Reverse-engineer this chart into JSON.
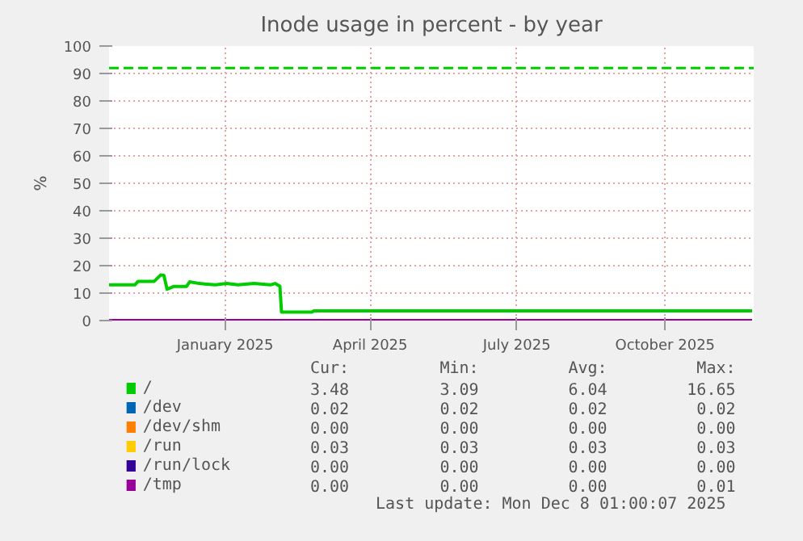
{
  "chart_data": {
    "type": "line",
    "title": "Inode usage in percent - by year",
    "ylabel": "%",
    "xlim": [
      "2024-10-21",
      "2025-11-25"
    ],
    "ylim": [
      0,
      100
    ],
    "xticks": [
      {
        "value": "2025-01-01",
        "label": "January 2025"
      },
      {
        "value": "2025-04-01",
        "label": "April 2025"
      },
      {
        "value": "2025-07-01",
        "label": "July 2025"
      },
      {
        "value": "2025-10-01",
        "label": "October 2025"
      }
    ],
    "yticks": [
      0,
      10,
      20,
      30,
      40,
      50,
      60,
      70,
      80,
      90,
      100
    ],
    "grid": true,
    "legend": "bottom",
    "ref_lines": [
      {
        "axis": "y",
        "value": 92,
        "color": "#00cc00",
        "line_style": "dashed"
      }
    ],
    "series": [
      {
        "name": "/",
        "color": "#00cc00",
        "x": [
          "2024-10-21",
          "2024-11-06",
          "2024-11-08",
          "2024-11-18",
          "2024-11-22",
          "2024-11-24",
          "2024-11-26",
          "2024-11-30",
          "2024-12-08",
          "2024-12-10",
          "2024-12-16",
          "2024-12-26",
          "2025-01-02",
          "2025-01-09",
          "2025-01-19",
          "2025-01-29",
          "2025-02-01",
          "2025-02-04",
          "2025-02-05",
          "2025-02-24",
          "2025-02-25",
          "2025-11-24"
        ],
        "values": [
          13.0,
          13.0,
          14.3,
          14.3,
          16.6,
          16.5,
          11.4,
          12.4,
          12.4,
          14.1,
          13.5,
          13.0,
          13.5,
          13.0,
          13.5,
          13.0,
          13.5,
          12.5,
          3.1,
          3.1,
          3.5,
          3.5
        ]
      },
      {
        "name": "/dev",
        "color": "#0066b3"
      },
      {
        "name": "/dev/shm",
        "color": "#ff8000"
      },
      {
        "name": "/run",
        "color": "#ffcc00"
      },
      {
        "name": "/run/lock",
        "color": "#330099"
      },
      {
        "name": "/tmp",
        "color": "#990099",
        "x": [
          "2024-10-21",
          "2025-11-24"
        ],
        "values": [
          0,
          0
        ]
      }
    ],
    "annotations": [
      "Cur:",
      "Min:",
      "Avg:",
      "Max:",
      "3.48",
      "3.09",
      "6.04",
      "16.65",
      "0.02",
      "0.02",
      "0.02",
      "0.02",
      "0.00",
      "0.00",
      "0.00",
      "0.00",
      "0.03",
      "0.03",
      "0.03",
      "0.03",
      "0.00",
      "0.00",
      "0.00",
      "0.00",
      "0.00",
      "0.00",
      "0.00",
      "0.01",
      "Last update: Mon Dec  8 01:00:07 2025"
    ]
  }
}
